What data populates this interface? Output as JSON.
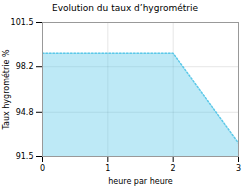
{
  "chart_data": {
    "type": "area",
    "title": "Evolution du taux d’hygrométrie",
    "xlabel": "heure par heure",
    "ylabel": "Taux hygrométrie %",
    "x": [
      0,
      0.25,
      2.0,
      3.0
    ],
    "values": [
      99.2,
      99.2,
      99.2,
      92.5
    ],
    "xlim": [
      0,
      3
    ],
    "ylim": [
      91.5,
      101.5
    ],
    "xticks": [
      0,
      1,
      2,
      3
    ],
    "yticks": [
      91.5,
      94.8,
      98.2,
      101.5
    ],
    "color": "#5bc8e8",
    "line_style": "dotted",
    "grid": true
  }
}
